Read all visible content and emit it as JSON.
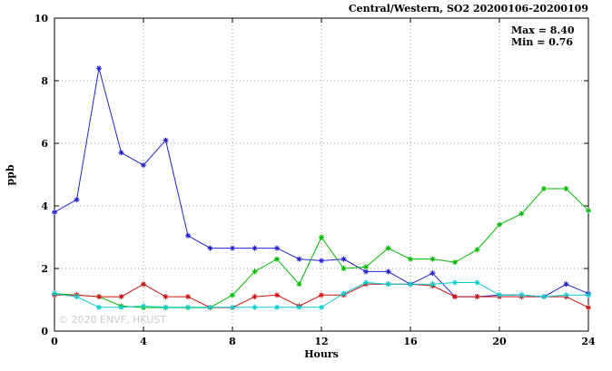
{
  "title": "Central/Western, SO2 20200106-20200109",
  "annotations": {
    "max_label": "Max = 8.40",
    "min_label": "Min = 0.76"
  },
  "watermark": "© 2020 ENVF, HKUST",
  "chart_data": {
    "type": "line",
    "title": "Central/Western, SO2 20200106-20200109",
    "xlabel": "Hours",
    "ylabel": "ppb",
    "xlim": [
      0,
      24
    ],
    "ylim": [
      0,
      10
    ],
    "x_ticks": [
      0,
      4,
      8,
      12,
      16,
      20,
      24
    ],
    "y_ticks": [
      0,
      2,
      4,
      6,
      8,
      10
    ],
    "grid": "dotted",
    "legend_position": "none",
    "marker": "asterisk",
    "max_value": 8.4,
    "min_value": 0.76,
    "x": [
      0,
      1,
      2,
      3,
      4,
      5,
      6,
      7,
      8,
      9,
      10,
      11,
      12,
      13,
      14,
      15,
      16,
      17,
      18,
      19,
      20,
      21,
      22,
      23,
      24
    ],
    "series": [
      {
        "name": "blue",
        "color": "#2222cc",
        "values": [
          3.8,
          4.2,
          8.4,
          5.7,
          5.3,
          6.1,
          3.05,
          2.65,
          2.65,
          2.65,
          2.65,
          2.3,
          2.25,
          2.3,
          1.9,
          1.9,
          1.5,
          1.85,
          1.1,
          1.1,
          1.15,
          1.15,
          1.1,
          1.5,
          1.2
        ]
      },
      {
        "name": "green",
        "color": "#00bb00",
        "values": [
          1.2,
          1.15,
          1.1,
          0.8,
          0.75,
          0.75,
          0.75,
          0.75,
          1.15,
          1.9,
          2.3,
          1.5,
          3.0,
          2.0,
          2.05,
          2.65,
          2.3,
          2.3,
          2.2,
          2.6,
          3.4,
          3.75,
          4.55,
          4.55,
          3.85
        ]
      },
      {
        "name": "red",
        "color": "#cc1111",
        "values": [
          1.15,
          1.15,
          1.1,
          1.1,
          1.5,
          1.1,
          1.1,
          0.75,
          0.75,
          1.1,
          1.15,
          0.8,
          1.15,
          1.15,
          1.5,
          1.5,
          1.5,
          1.45,
          1.1,
          1.1,
          1.1,
          1.1,
          1.1,
          1.1,
          0.75
        ]
      },
      {
        "name": "cyan",
        "color": "#00cccc",
        "values": [
          1.2,
          1.1,
          0.76,
          0.76,
          0.8,
          0.76,
          0.76,
          0.76,
          0.76,
          0.76,
          0.76,
          0.76,
          0.76,
          1.2,
          1.55,
          1.5,
          1.5,
          1.5,
          1.55,
          1.55,
          1.15,
          1.15,
          1.1,
          1.15,
          1.15
        ]
      }
    ]
  }
}
